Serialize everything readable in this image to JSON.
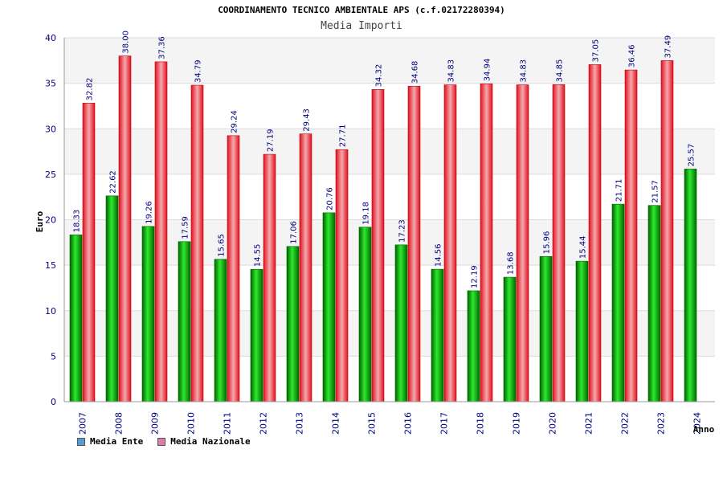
{
  "chart_data": {
    "type": "bar",
    "title": "COORDINAMENTO TECNICO AMBIENTALE APS (c.f.02172280394)",
    "subtitle": "Media Importi",
    "ylabel": "Euro",
    "xlabel": "Anno",
    "ylim": [
      0,
      40
    ],
    "yticks": [
      "0",
      "5",
      "10",
      "15",
      "20",
      "25",
      "30",
      "35",
      "40"
    ],
    "categories": [
      "2007",
      "2008",
      "2009",
      "2010",
      "2011",
      "2012",
      "2013",
      "2014",
      "2015",
      "2016",
      "2017",
      "2018",
      "2019",
      "2020",
      "2021",
      "2022",
      "2023",
      "2024"
    ],
    "series": [
      {
        "name": "Media Ente",
        "color": "#00a000",
        "values": [
          18.33,
          22.62,
          19.26,
          17.59,
          15.65,
          14.55,
          17.06,
          20.76,
          19.18,
          17.23,
          14.56,
          12.19,
          13.68,
          15.96,
          15.44,
          21.71,
          21.57,
          25.57
        ],
        "labels": [
          "18.33",
          "22.62",
          "19.26",
          "17.59",
          "15.65",
          "14.55",
          "17.06",
          "20.76",
          "19.18",
          "17.23",
          "14.56",
          "12.19",
          "13.68",
          "15.96",
          "15.44",
          "21.71",
          "21.57",
          "25.57"
        ]
      },
      {
        "name": "Media Nazionale",
        "color": "#e8202a",
        "values": [
          32.82,
          38.0,
          37.36,
          34.79,
          29.24,
          27.19,
          29.43,
          27.71,
          34.32,
          34.68,
          34.83,
          34.94,
          34.83,
          34.85,
          37.05,
          36.46,
          37.49,
          null
        ],
        "labels": [
          "32.82",
          "38.00",
          "37.36",
          "34.79",
          "29.24",
          "27.19",
          "29.43",
          "27.71",
          "34.32",
          "34.68",
          "34.83",
          "34.94",
          "34.83",
          "34.85",
          "37.05",
          "36.46",
          "37.49",
          ""
        ]
      }
    ],
    "legend": [
      {
        "label": "Media Ente",
        "color": "#5b9bd5"
      },
      {
        "label": "Media Nazionale",
        "color": "#e07aa8"
      }
    ],
    "grid": true,
    "legend_position": "bottom-left"
  }
}
